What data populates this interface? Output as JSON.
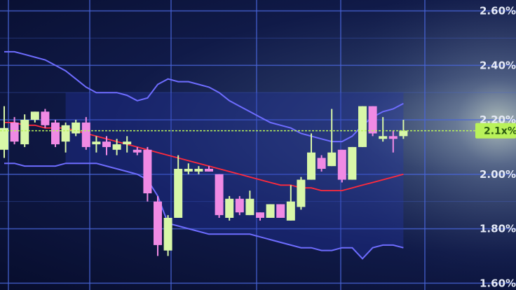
{
  "chart_data": {
    "type": "candlestick",
    "y_axis": {
      "position": "right",
      "ticks": [
        "2.60%",
        "2.40%",
        "2.20%",
        "2.00%",
        "1.80%",
        "1.60%"
      ],
      "range": [
        1.575,
        2.64
      ]
    },
    "current_price_label": "2.1x%",
    "colors": {
      "up": "#d8f7a8",
      "down": "#f08ae4",
      "bollinger": "#6e6cff",
      "moving_average": "#ff2a3c",
      "grid": "#4a66d8",
      "current_price": "#b9f25a"
    },
    "candles": [
      {
        "o": 2.09,
        "h": 2.25,
        "l": 2.06,
        "c": 2.17
      },
      {
        "o": 2.19,
        "h": 2.21,
        "l": 2.11,
        "c": 2.12
      },
      {
        "o": 2.11,
        "h": 2.22,
        "l": 2.1,
        "c": 2.2
      },
      {
        "o": 2.2,
        "h": 2.23,
        "l": 2.19,
        "c": 2.23
      },
      {
        "o": 2.23,
        "h": 2.24,
        "l": 2.17,
        "c": 2.18
      },
      {
        "o": 2.19,
        "h": 2.2,
        "l": 2.1,
        "c": 2.11
      },
      {
        "o": 2.12,
        "h": 2.19,
        "l": 2.08,
        "c": 2.18
      },
      {
        "o": 2.15,
        "h": 2.2,
        "l": 2.14,
        "c": 2.19
      },
      {
        "o": 2.19,
        "h": 2.21,
        "l": 2.09,
        "c": 2.1
      },
      {
        "o": 2.11,
        "h": 2.14,
        "l": 2.08,
        "c": 2.12
      },
      {
        "o": 2.12,
        "h": 2.14,
        "l": 2.07,
        "c": 2.1
      },
      {
        "o": 2.09,
        "h": 2.13,
        "l": 2.07,
        "c": 2.11
      },
      {
        "o": 2.11,
        "h": 2.14,
        "l": 2.08,
        "c": 2.12
      },
      {
        "o": 2.09,
        "h": 2.1,
        "l": 2.07,
        "c": 2.08
      },
      {
        "o": 2.09,
        "h": 2.1,
        "l": 1.9,
        "c": 1.93
      },
      {
        "o": 1.9,
        "h": 1.92,
        "l": 1.7,
        "c": 1.74
      },
      {
        "o": 1.72,
        "h": 1.85,
        "l": 1.7,
        "c": 1.84
      },
      {
        "o": 1.84,
        "h": 2.07,
        "l": 1.84,
        "c": 2.02
      },
      {
        "o": 2.01,
        "h": 2.04,
        "l": 2.0,
        "c": 2.02
      },
      {
        "o": 2.01,
        "h": 2.03,
        "l": 2.0,
        "c": 2.02
      },
      {
        "o": 2.02,
        "h": 2.03,
        "l": 2.01,
        "c": 2.01
      },
      {
        "o": 2.0,
        "h": 2.0,
        "l": 1.84,
        "c": 1.85
      },
      {
        "o": 1.84,
        "h": 1.92,
        "l": 1.83,
        "c": 1.91
      },
      {
        "o": 1.91,
        "h": 1.92,
        "l": 1.85,
        "c": 1.86
      },
      {
        "o": 1.85,
        "h": 1.94,
        "l": 1.85,
        "c": 1.91
      },
      {
        "o": 1.86,
        "h": 1.86,
        "l": 1.83,
        "c": 1.84
      },
      {
        "o": 1.84,
        "h": 1.89,
        "l": 1.84,
        "c": 1.89
      },
      {
        "o": 1.89,
        "h": 1.89,
        "l": 1.84,
        "c": 1.84
      },
      {
        "o": 1.83,
        "h": 1.96,
        "l": 1.83,
        "c": 1.9
      },
      {
        "o": 1.88,
        "h": 1.99,
        "l": 1.87,
        "c": 1.98
      },
      {
        "o": 1.98,
        "h": 2.15,
        "l": 1.98,
        "c": 2.08
      },
      {
        "o": 2.06,
        "h": 2.07,
        "l": 2.01,
        "c": 2.02
      },
      {
        "o": 2.03,
        "h": 2.24,
        "l": 2.03,
        "c": 2.08
      },
      {
        "o": 2.09,
        "h": 2.09,
        "l": 1.97,
        "c": 1.98
      },
      {
        "o": 1.98,
        "h": 2.1,
        "l": 1.98,
        "c": 2.1
      },
      {
        "o": 2.1,
        "h": 2.25,
        "l": 2.1,
        "c": 2.25
      },
      {
        "o": 2.25,
        "h": 2.25,
        "l": 2.14,
        "c": 2.15
      },
      {
        "o": 2.13,
        "h": 2.21,
        "l": 2.12,
        "c": 2.14
      },
      {
        "o": 2.14,
        "h": 2.16,
        "l": 2.08,
        "c": 2.13
      },
      {
        "o": 2.14,
        "h": 2.2,
        "l": 2.13,
        "c": 2.16
      }
    ],
    "moving_average": [
      2.19,
      2.19,
      2.18,
      2.18,
      2.17,
      2.17,
      2.17,
      2.16,
      2.15,
      2.14,
      2.13,
      2.12,
      2.11,
      2.1,
      2.09,
      2.08,
      2.07,
      2.06,
      2.05,
      2.04,
      2.03,
      2.02,
      2.01,
      2.0,
      1.99,
      1.98,
      1.97,
      1.96,
      1.96,
      1.95,
      1.95,
      1.94,
      1.94,
      1.94,
      1.95,
      1.96,
      1.97,
      1.98,
      1.99,
      2.0
    ],
    "bollinger_upper": [
      2.45,
      2.45,
      2.44,
      2.43,
      2.42,
      2.4,
      2.38,
      2.35,
      2.32,
      2.3,
      2.3,
      2.3,
      2.29,
      2.27,
      2.28,
      2.33,
      2.35,
      2.34,
      2.34,
      2.33,
      2.32,
      2.3,
      2.27,
      2.25,
      2.23,
      2.21,
      2.19,
      2.18,
      2.17,
      2.15,
      2.14,
      2.13,
      2.12,
      2.12,
      2.14,
      2.18,
      2.21,
      2.23,
      2.24,
      2.26
    ],
    "bollinger_lower": [
      2.04,
      2.04,
      2.03,
      2.03,
      2.03,
      2.03,
      2.04,
      2.04,
      2.04,
      2.04,
      2.03,
      2.02,
      2.01,
      2.0,
      1.98,
      1.92,
      1.82,
      1.81,
      1.8,
      1.79,
      1.78,
      1.78,
      1.78,
      1.78,
      1.78,
      1.77,
      1.76,
      1.75,
      1.74,
      1.73,
      1.73,
      1.72,
      1.72,
      1.73,
      1.73,
      1.69,
      1.73,
      1.74,
      1.74,
      1.73
    ]
  }
}
